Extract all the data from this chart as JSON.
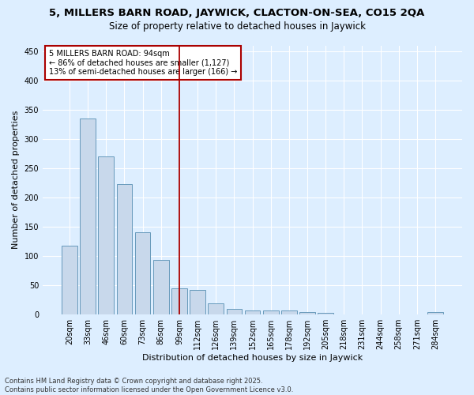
{
  "title": "5, MILLERS BARN ROAD, JAYWICK, CLACTON-ON-SEA, CO15 2QA",
  "subtitle": "Size of property relative to detached houses in Jaywick",
  "xlabel": "Distribution of detached houses by size in Jaywick",
  "ylabel": "Number of detached properties",
  "bar_labels": [
    "20sqm",
    "33sqm",
    "46sqm",
    "60sqm",
    "73sqm",
    "86sqm",
    "99sqm",
    "112sqm",
    "126sqm",
    "139sqm",
    "152sqm",
    "165sqm",
    "178sqm",
    "192sqm",
    "205sqm",
    "218sqm",
    "231sqm",
    "244sqm",
    "258sqm",
    "271sqm",
    "284sqm"
  ],
  "bar_values": [
    117,
    335,
    270,
    223,
    140,
    93,
    44,
    41,
    18,
    9,
    6,
    6,
    7,
    3,
    2,
    0,
    0,
    0,
    0,
    0,
    4
  ],
  "bar_color": "#c8d8eb",
  "bar_edgecolor": "#6699bb",
  "vline_index": 6,
  "vline_color": "#aa0000",
  "annotation_text": "5 MILLERS BARN ROAD: 94sqm\n← 86% of detached houses are smaller (1,127)\n13% of semi-detached houses are larger (166) →",
  "annotation_box_facecolor": "#ffffff",
  "annotation_box_edgecolor": "#aa0000",
  "ylim": [
    0,
    460
  ],
  "yticks": [
    0,
    50,
    100,
    150,
    200,
    250,
    300,
    350,
    400,
    450
  ],
  "footnote": "Contains HM Land Registry data © Crown copyright and database right 2025.\nContains public sector information licensed under the Open Government Licence v3.0.",
  "background_color": "#ddeeff",
  "plot_background_color": "#ddeeff",
  "title_fontsize": 9.5,
  "subtitle_fontsize": 8.5,
  "xlabel_fontsize": 8,
  "ylabel_fontsize": 8,
  "tick_fontsize": 7,
  "annotation_fontsize": 7,
  "footnote_fontsize": 6
}
